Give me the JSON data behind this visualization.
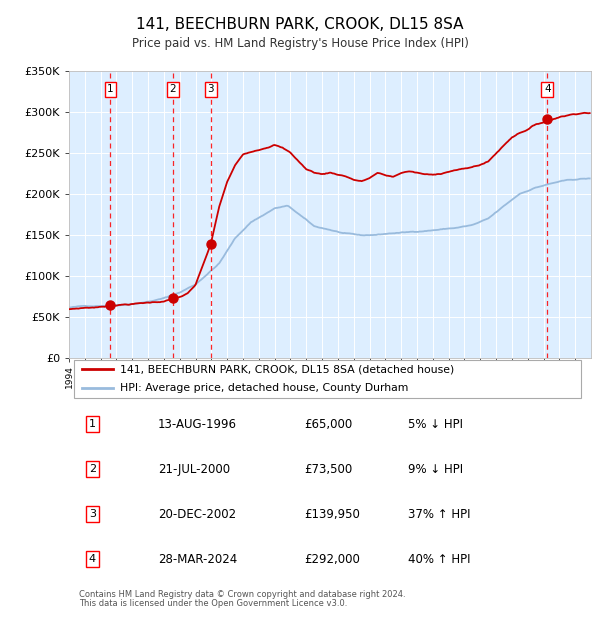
{
  "title": "141, BEECHBURN PARK, CROOK, DL15 8SA",
  "subtitle": "Price paid vs. HM Land Registry's House Price Index (HPI)",
  "transactions": [
    {
      "num": 1,
      "date": "13-AUG-1996",
      "year": 1996.62,
      "price": 65000,
      "pct": "5%",
      "dir": "↓"
    },
    {
      "num": 2,
      "date": "21-JUL-2000",
      "year": 2000.55,
      "price": 73500,
      "pct": "9%",
      "dir": "↓"
    },
    {
      "num": 3,
      "date": "20-DEC-2002",
      "year": 2002.97,
      "price": 139950,
      "pct": "37%",
      "dir": "↑"
    },
    {
      "num": 4,
      "date": "28-MAR-2024",
      "year": 2024.24,
      "price": 292000,
      "pct": "40%",
      "dir": "↑"
    }
  ],
  "legend_property": "141, BEECHBURN PARK, CROOK, DL15 8SA (detached house)",
  "legend_hpi": "HPI: Average price, detached house, County Durham",
  "property_color": "#cc0000",
  "hpi_color": "#99bbdd",
  "background_color": "#ddeeff",
  "ylim": [
    0,
    350000
  ],
  "xmin": 1994,
  "xmax": 2027,
  "footnote1": "Contains HM Land Registry data © Crown copyright and database right 2024.",
  "footnote2": "This data is licensed under the Open Government Licence v3.0.",
  "table_rows": [
    [
      "1",
      "13-AUG-1996",
      "£65,000",
      "5% ↓ HPI"
    ],
    [
      "2",
      "21-JUL-2000",
      "£73,500",
      "9% ↓ HPI"
    ],
    [
      "3",
      "20-DEC-2002",
      "£139,950",
      "37% ↑ HPI"
    ],
    [
      "4",
      "28-MAR-2024",
      "£292,000",
      "40% ↑ HPI"
    ]
  ]
}
